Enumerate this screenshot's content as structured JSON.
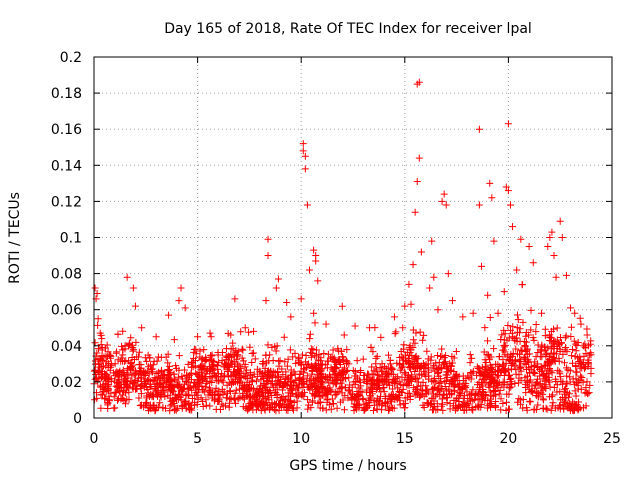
{
  "chart_data": {
    "type": "scatter",
    "title": "Day 165 of 2018, Rate Of TEC Index for receiver lpal",
    "xlabel": "GPS time / hours",
    "ylabel": "ROTI / TECUs",
    "xlim": [
      0,
      25
    ],
    "ylim": [
      0,
      0.2
    ],
    "x_ticks": [
      0,
      5,
      10,
      15,
      20,
      25
    ],
    "x_tick_labels": [
      "0",
      "5",
      "10",
      "15",
      "20",
      "25"
    ],
    "y_ticks": [
      0,
      0.02,
      0.04,
      0.06,
      0.08,
      0.1,
      0.12,
      0.14,
      0.16,
      0.18,
      0.2
    ],
    "y_tick_labels": [
      "0",
      "0.02",
      "0.04",
      "0.06",
      "0.08",
      "0.1",
      "0.12",
      "0.14",
      "0.16",
      "0.18",
      "0.2"
    ],
    "grid": true,
    "marker": "+",
    "marker_color": "#ff0000",
    "series": [
      {
        "name": "ROTI",
        "points": [
          [
            0.05,
            0.072
          ],
          [
            0.1,
            0.066
          ],
          [
            0.15,
            0.069
          ],
          [
            0.2,
            0.055
          ],
          [
            0.3,
            0.047
          ],
          [
            1.6,
            0.078
          ],
          [
            1.9,
            0.072
          ],
          [
            2.0,
            0.062
          ],
          [
            2.3,
            0.05
          ],
          [
            3.0,
            0.045
          ],
          [
            3.6,
            0.057
          ],
          [
            4.1,
            0.065
          ],
          [
            4.2,
            0.072
          ],
          [
            4.4,
            0.061
          ],
          [
            5.0,
            0.045
          ],
          [
            5.6,
            0.047
          ],
          [
            6.6,
            0.046
          ],
          [
            6.8,
            0.066
          ],
          [
            7.3,
            0.05
          ],
          [
            7.7,
            0.048
          ],
          [
            8.3,
            0.065
          ],
          [
            8.4,
            0.099
          ],
          [
            8.4,
            0.09
          ],
          [
            8.9,
            0.077
          ],
          [
            8.8,
            0.072
          ],
          [
            9.3,
            0.064
          ],
          [
            9.5,
            0.056
          ],
          [
            10.0,
            0.066
          ],
          [
            10.1,
            0.152
          ],
          [
            10.1,
            0.148
          ],
          [
            10.2,
            0.145
          ],
          [
            10.2,
            0.138
          ],
          [
            10.3,
            0.118
          ],
          [
            10.4,
            0.082
          ],
          [
            10.6,
            0.093
          ],
          [
            10.7,
            0.09
          ],
          [
            10.7,
            0.087
          ],
          [
            10.8,
            0.076
          ],
          [
            10.6,
            0.058
          ],
          [
            11.2,
            0.052
          ],
          [
            12.6,
            0.051
          ],
          [
            13.3,
            0.05
          ],
          [
            14.5,
            0.056
          ],
          [
            14.9,
            0.05
          ],
          [
            15.0,
            0.062
          ],
          [
            15.2,
            0.074
          ],
          [
            15.3,
            0.063
          ],
          [
            15.4,
            0.085
          ],
          [
            15.5,
            0.114
          ],
          [
            15.6,
            0.185
          ],
          [
            15.6,
            0.131
          ],
          [
            15.7,
            0.186
          ],
          [
            15.7,
            0.144
          ],
          [
            15.8,
            0.092
          ],
          [
            16.2,
            0.072
          ],
          [
            16.3,
            0.098
          ],
          [
            16.4,
            0.078
          ],
          [
            16.6,
            0.06
          ],
          [
            16.8,
            0.12
          ],
          [
            16.9,
            0.124
          ],
          [
            17.0,
            0.118
          ],
          [
            17.1,
            0.08
          ],
          [
            17.3,
            0.065
          ],
          [
            17.8,
            0.056
          ],
          [
            18.3,
            0.058
          ],
          [
            18.6,
            0.16
          ],
          [
            18.6,
            0.118
          ],
          [
            18.7,
            0.084
          ],
          [
            19.0,
            0.068
          ],
          [
            19.1,
            0.13
          ],
          [
            19.2,
            0.122
          ],
          [
            19.3,
            0.098
          ],
          [
            19.5,
            0.058
          ],
          [
            19.8,
            0.07
          ],
          [
            19.9,
            0.128
          ],
          [
            20.0,
            0.163
          ],
          [
            20.0,
            0.126
          ],
          [
            20.1,
            0.118
          ],
          [
            20.2,
            0.106
          ],
          [
            20.4,
            0.082
          ],
          [
            20.6,
            0.099
          ],
          [
            21.0,
            0.095
          ],
          [
            21.2,
            0.086
          ],
          [
            21.6,
            0.058
          ],
          [
            21.9,
            0.095
          ],
          [
            22.0,
            0.1
          ],
          [
            22.1,
            0.103
          ],
          [
            22.2,
            0.09
          ],
          [
            22.3,
            0.078
          ],
          [
            22.5,
            0.109
          ],
          [
            22.6,
            0.1
          ],
          [
            22.8,
            0.079
          ],
          [
            23.0,
            0.061
          ],
          [
            23.2,
            0.058
          ],
          [
            23.5,
            0.052
          ],
          [
            23.8,
            0.046
          ]
        ]
      }
    ]
  }
}
